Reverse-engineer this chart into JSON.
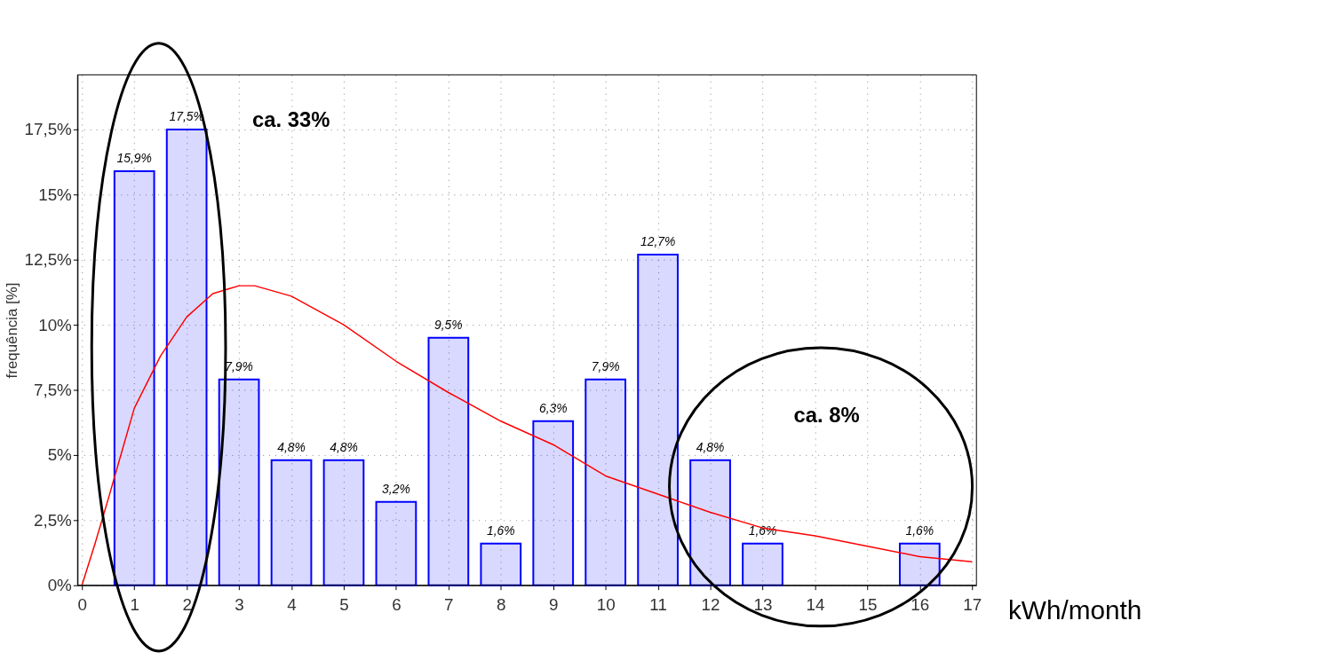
{
  "chart_data": {
    "type": "bar",
    "xlabel": "kWh/month",
    "ylabel": "frequência [%]",
    "series": [
      {
        "color": "#0000ff",
        "x": [
          1,
          2,
          3,
          4,
          5,
          6,
          7,
          8,
          9,
          10,
          11,
          12,
          13,
          16
        ],
        "values": [
          15.9,
          17.5,
          7.9,
          4.8,
          4.8,
          3.2,
          9.5,
          1.6,
          6.3,
          7.9,
          12.7,
          4.8,
          1.6,
          1.6
        ],
        "value_labels": [
          "15,9%",
          "17,5%",
          "7,9%",
          "4,8%",
          "4,8%",
          "3,2%",
          "9,5%",
          "1,6%",
          "6,3%",
          "7,9%",
          "12,7%",
          "4,8%",
          "1,6%",
          "1,6%"
        ]
      },
      {
        "type": "line",
        "color": "#ff0000",
        "x": [
          0,
          0.25,
          0.5,
          1,
          1.5,
          2,
          2.5,
          3,
          3.3,
          4,
          5,
          6,
          7,
          8,
          9,
          10,
          11,
          12,
          13,
          14,
          15,
          16,
          17
        ],
        "values": [
          0,
          1.6,
          3.3,
          6.8,
          8.8,
          10.3,
          11.2,
          11.5,
          11.5,
          11.1,
          10.0,
          8.6,
          7.4,
          6.3,
          5.4,
          4.2,
          3.5,
          2.8,
          2.2,
          1.9,
          1.5,
          1.1,
          0.9
        ]
      }
    ],
    "xlim": [
      0,
      17
    ],
    "xticks": [
      0,
      1,
      2,
      3,
      4,
      5,
      6,
      7,
      8,
      9,
      10,
      11,
      12,
      13,
      14,
      15,
      16,
      17
    ],
    "ylim": [
      0,
      19.6
    ],
    "yticks": [
      {
        "value": 0,
        "label": "0%"
      },
      {
        "value": 2.5,
        "label": "2,5%"
      },
      {
        "value": 5,
        "label": "5%"
      },
      {
        "value": 7.5,
        "label": "7,5%"
      },
      {
        "value": 10,
        "label": "10%"
      },
      {
        "value": 12.5,
        "label": "12,5%"
      },
      {
        "value": 15,
        "label": "15%"
      },
      {
        "value": 17.5,
        "label": "17,5%"
      }
    ],
    "grid": true,
    "annotations": [
      "ca. 33%",
      "ca. 8%"
    ]
  }
}
